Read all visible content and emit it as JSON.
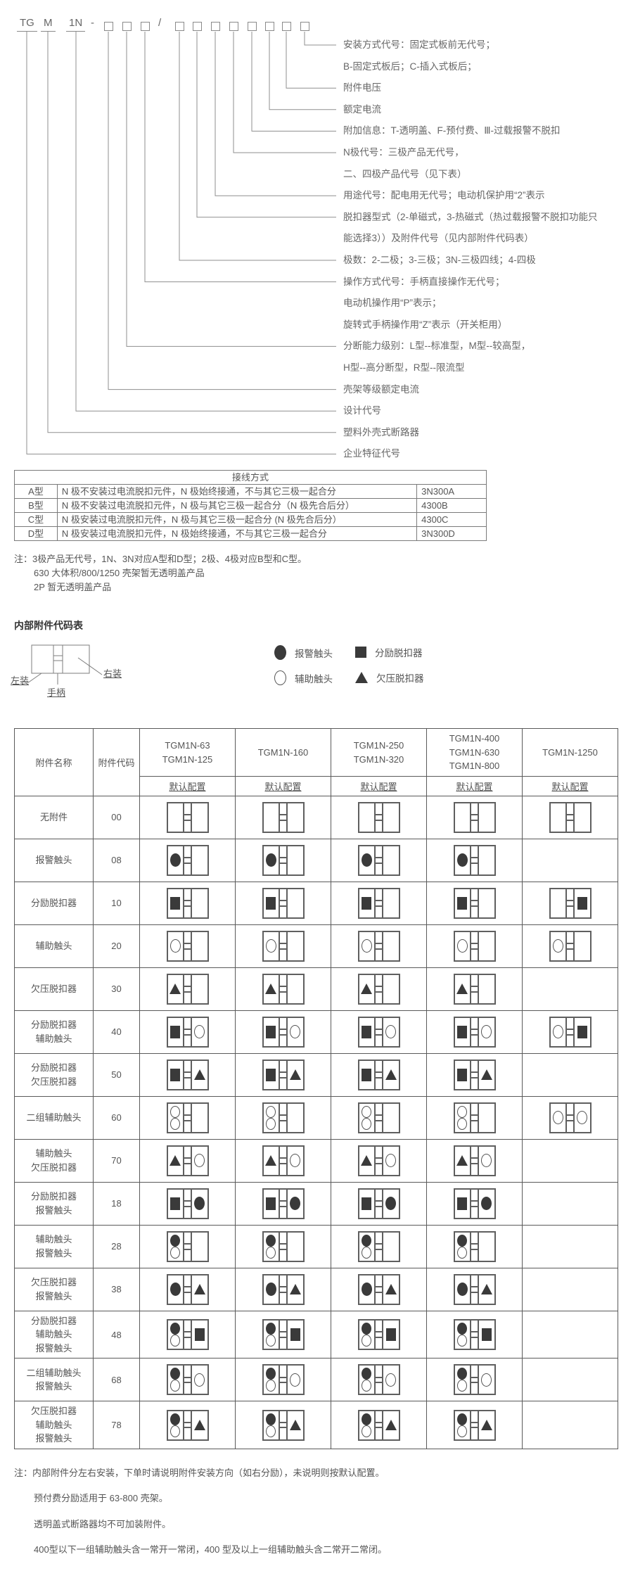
{
  "model_code": {
    "prefix_tokens": [
      "TG",
      "M",
      "1N"
    ],
    "hyphen": "-",
    "slash": "/",
    "labels": [
      "安装方式代号：固定式板前无代号；",
      "B-固定式板后；C-插入式板后；",
      "附件电压",
      "额定电流",
      "附加信息：T-透明盖、F-预付费、Ⅲ-过载报警不脱扣",
      "N极代号：三极产品无代号，",
      "二、四极产品代号（见下表）",
      "用途代号：配电用无代号；电动机保护用“2”表示",
      "脱扣器型式（2-单磁式，3-热磁式（热过载报警不脱扣功能只",
      "能选择3））及附件代号（见内部附件代码表）",
      "极数：2-二极；3-三极；3N-三极四线；4-四极",
      "操作方式代号：手柄直接操作无代号；",
      "电动机操作用“P”表示；",
      "旋转式手柄操作用“Z”表示（开关柜用）",
      "分断能力级别：L型--标准型，M型--较高型，",
      "H型--高分断型，R型--限流型",
      "壳架等级额定电流",
      "设计代号",
      "塑料外壳式断路器",
      "企业特征代号"
    ]
  },
  "wiring_table": {
    "title": "接线方式",
    "rows": [
      {
        "type": "A型",
        "desc": "N 极不安装过电流脱扣元件，N 极始终接通，不与其它三极一起合分",
        "code": "3N300A"
      },
      {
        "type": "B型",
        "desc": "N 极不安装过电流脱扣元件，N 极与其它三极一起合分（N 极先合后分）",
        "code": "4300B"
      },
      {
        "type": "C型",
        "desc": "N 极安装过电流脱扣元件，N 极与其它三极一起合分 (N 极先合后分）",
        "code": "4300C"
      },
      {
        "type": "D型",
        "desc": "N 极安装过电流脱扣元件，N 极始终接通，不与其它三极一起合分",
        "code": "3N300D"
      }
    ]
  },
  "wiring_notes": [
    "注：3极产品无代号，1N、3N对应A型和D型；2极、4极对应B型和C型。",
    "630 大体积/800/1250 壳架暂无透明盖产品",
    "2P 暂无透明盖产品"
  ],
  "accessory_section": {
    "title": "内部附件代码表",
    "diagram_labels": {
      "left": "左装",
      "right": "右装",
      "handle": "手柄"
    },
    "legend": [
      {
        "symbol": "alarm",
        "label": "报警触头"
      },
      {
        "symbol": "shunt",
        "label": "分励脱扣器"
      },
      {
        "symbol": "aux",
        "label": "辅助触头"
      },
      {
        "symbol": "uv",
        "label": "欠压脱扣器"
      }
    ],
    "table": {
      "name_header": "附件名称",
      "code_header": "附件代码",
      "subheader": "默认配置",
      "model_columns": [
        [
          "TGM1N-63",
          "TGM1N-125"
        ],
        [
          "TGM1N-160"
        ],
        [
          "TGM1N-250",
          "TGM1N-320"
        ],
        [
          "TGM1N-400",
          "TGM1N-630",
          "TGM1N-800"
        ],
        [
          "TGM1N-1250"
        ]
      ],
      "rows": [
        {
          "name": [
            "无附件"
          ],
          "code": "00",
          "cells": [
            {
              "l": [],
              "r": []
            },
            {
              "l": [],
              "r": []
            },
            {
              "l": [],
              "r": []
            },
            {
              "l": [],
              "r": []
            },
            {
              "l": [],
              "r": []
            }
          ]
        },
        {
          "name": [
            "报警触头"
          ],
          "code": "08",
          "cells": [
            {
              "l": [
                "alarm"
              ],
              "r": []
            },
            {
              "l": [
                "alarm"
              ],
              "r": []
            },
            {
              "l": [
                "alarm"
              ],
              "r": []
            },
            {
              "l": [
                "alarm"
              ],
              "r": []
            },
            null
          ]
        },
        {
          "name": [
            "分励脱扣器"
          ],
          "code": "10",
          "cells": [
            {
              "l": [
                "shunt"
              ],
              "r": []
            },
            {
              "l": [
                "shunt"
              ],
              "r": []
            },
            {
              "l": [
                "shunt"
              ],
              "r": []
            },
            {
              "l": [
                "shunt"
              ],
              "r": []
            },
            {
              "l": [],
              "r": [
                "shunt"
              ]
            }
          ]
        },
        {
          "name": [
            "辅助触头"
          ],
          "code": "20",
          "cells": [
            {
              "l": [
                "aux"
              ],
              "r": []
            },
            {
              "l": [
                "aux"
              ],
              "r": []
            },
            {
              "l": [
                "aux"
              ],
              "r": []
            },
            {
              "l": [
                "aux"
              ],
              "r": []
            },
            {
              "l": [
                "aux"
              ],
              "r": []
            }
          ]
        },
        {
          "name": [
            "欠压脱扣器"
          ],
          "code": "30",
          "cells": [
            {
              "l": [
                "uv"
              ],
              "r": []
            },
            {
              "l": [
                "uv"
              ],
              "r": []
            },
            {
              "l": [
                "uv"
              ],
              "r": []
            },
            {
              "l": [
                "uv"
              ],
              "r": []
            },
            null
          ]
        },
        {
          "name": [
            "分励脱扣器",
            "辅助触头"
          ],
          "code": "40",
          "cells": [
            {
              "l": [
                "shunt"
              ],
              "r": [
                "aux"
              ]
            },
            {
              "l": [
                "shunt"
              ],
              "r": [
                "aux"
              ]
            },
            {
              "l": [
                "shunt"
              ],
              "r": [
                "aux"
              ]
            },
            {
              "l": [
                "shunt"
              ],
              "r": [
                "aux"
              ]
            },
            {
              "l": [
                "aux"
              ],
              "r": [
                "shunt"
              ]
            }
          ]
        },
        {
          "name": [
            "分励脱扣器",
            "欠压脱扣器"
          ],
          "code": "50",
          "cells": [
            {
              "l": [
                "shunt"
              ],
              "r": [
                "uv"
              ]
            },
            {
              "l": [
                "shunt"
              ],
              "r": [
                "uv"
              ]
            },
            {
              "l": [
                "shunt"
              ],
              "r": [
                "uv"
              ]
            },
            {
              "l": [
                "shunt"
              ],
              "r": [
                "uv"
              ]
            },
            null
          ]
        },
        {
          "name": [
            "二组辅助触头"
          ],
          "code": "60",
          "cells": [
            {
              "l": [
                "aux",
                "aux"
              ],
              "r": []
            },
            {
              "l": [
                "aux",
                "aux"
              ],
              "r": []
            },
            {
              "l": [
                "aux",
                "aux"
              ],
              "r": []
            },
            {
              "l": [
                "aux",
                "aux"
              ],
              "r": []
            },
            {
              "l": [
                "aux"
              ],
              "r": [
                "aux"
              ]
            }
          ]
        },
        {
          "name": [
            "辅助触头",
            "欠压脱扣器"
          ],
          "code": "70",
          "cells": [
            {
              "l": [
                "uv"
              ],
              "r": [
                "aux"
              ]
            },
            {
              "l": [
                "uv"
              ],
              "r": [
                "aux"
              ]
            },
            {
              "l": [
                "uv"
              ],
              "r": [
                "aux"
              ]
            },
            {
              "l": [
                "uv"
              ],
              "r": [
                "aux"
              ]
            },
            null
          ]
        },
        {
          "name": [
            "分励脱扣器",
            "报警触头"
          ],
          "code": "18",
          "cells": [
            {
              "l": [
                "shunt"
              ],
              "r": [
                "alarm"
              ]
            },
            {
              "l": [
                "shunt"
              ],
              "r": [
                "alarm"
              ]
            },
            {
              "l": [
                "shunt"
              ],
              "r": [
                "alarm"
              ]
            },
            {
              "l": [
                "shunt"
              ],
              "r": [
                "alarm"
              ]
            },
            null
          ]
        },
        {
          "name": [
            "辅助触头",
            "报警触头"
          ],
          "code": "28",
          "cells": [
            {
              "l": [
                "alarm",
                "aux"
              ],
              "r": []
            },
            {
              "l": [
                "alarm",
                "aux"
              ],
              "r": []
            },
            {
              "l": [
                "alarm",
                "aux"
              ],
              "r": []
            },
            {
              "l": [
                "alarm",
                "aux"
              ],
              "r": []
            },
            null
          ]
        },
        {
          "name": [
            "欠压脱扣器",
            "报警触头"
          ],
          "code": "38",
          "cells": [
            {
              "l": [
                "alarm"
              ],
              "r": [
                "uv"
              ]
            },
            {
              "l": [
                "alarm"
              ],
              "r": [
                "uv"
              ]
            },
            {
              "l": [
                "alarm"
              ],
              "r": [
                "uv"
              ]
            },
            {
              "l": [
                "alarm"
              ],
              "r": [
                "uv"
              ]
            },
            null
          ]
        },
        {
          "name": [
            "分励脱扣器",
            "辅助触头",
            "报警触头"
          ],
          "code": "48",
          "cells": [
            {
              "l": [
                "alarm",
                "aux"
              ],
              "r": [
                "shunt"
              ]
            },
            {
              "l": [
                "alarm",
                "aux"
              ],
              "r": [
                "shunt"
              ]
            },
            {
              "l": [
                "alarm",
                "aux"
              ],
              "r": [
                "shunt"
              ]
            },
            {
              "l": [
                "alarm",
                "aux"
              ],
              "r": [
                "shunt"
              ]
            },
            null
          ]
        },
        {
          "name": [
            "二组辅助触头",
            "报警触头"
          ],
          "code": "68",
          "cells": [
            {
              "l": [
                "alarm",
                "aux"
              ],
              "r": [
                "aux"
              ]
            },
            {
              "l": [
                "alarm",
                "aux"
              ],
              "r": [
                "aux"
              ]
            },
            {
              "l": [
                "alarm",
                "aux"
              ],
              "r": [
                "aux"
              ]
            },
            {
              "l": [
                "alarm",
                "aux"
              ],
              "r": [
                "aux"
              ]
            },
            null
          ]
        },
        {
          "name": [
            "欠压脱扣器",
            "辅助触头",
            "报警触头"
          ],
          "code": "78",
          "cells": [
            {
              "l": [
                "alarm",
                "aux"
              ],
              "r": [
                "uv"
              ]
            },
            {
              "l": [
                "alarm",
                "aux"
              ],
              "r": [
                "uv"
              ]
            },
            {
              "l": [
                "alarm",
                "aux"
              ],
              "r": [
                "uv"
              ]
            },
            {
              "l": [
                "alarm",
                "aux"
              ],
              "r": [
                "uv"
              ]
            },
            null
          ]
        }
      ]
    }
  },
  "footer_notes": [
    "注：内部附件分左右安装，下单时请说明附件安装方向（如右分励），未说明则按默认配置。",
    "预付费分励适用于 63-800 壳架。",
    "透明盖式断路器均不可加装附件。",
    "400型以下一组辅助触头含一常开一常闭，400 型及以上一组辅助触头含二常开二常闭。"
  ]
}
